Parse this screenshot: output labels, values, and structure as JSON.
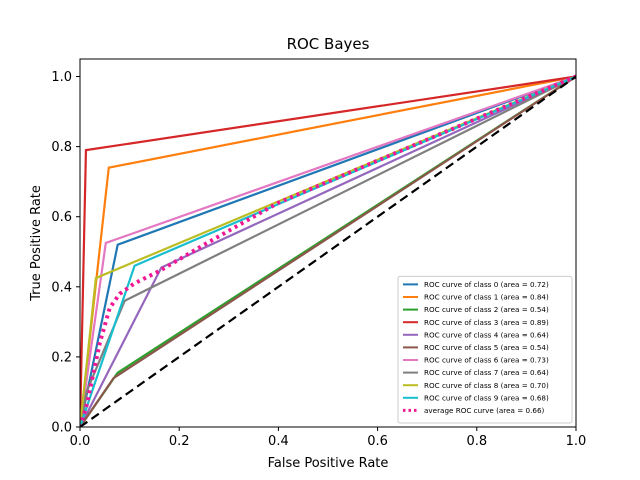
{
  "chart_data": {
    "type": "line",
    "title": "ROC Bayes",
    "xlabel": "False Positive Rate",
    "ylabel": "True Positive Rate",
    "xlim": [
      0.0,
      1.0
    ],
    "ylim": [
      0.0,
      1.05
    ],
    "x_ticks": [
      "0.0",
      "0.2",
      "0.4",
      "0.6",
      "0.8",
      "1.0"
    ],
    "y_ticks": [
      "0.0",
      "0.2",
      "0.4",
      "0.6",
      "0.8",
      "1.0"
    ],
    "x_tick_values": [
      0.0,
      0.2,
      0.4,
      0.6,
      0.8,
      1.0
    ],
    "y_tick_values": [
      0.0,
      0.2,
      0.4,
      0.6,
      0.8,
      1.0
    ],
    "grid": false,
    "legend_position": "lower right",
    "series": [
      {
        "name": "ROC curve of class 0 (area = 0.72)",
        "color": "#1f77b4",
        "style": "solid",
        "points": [
          [
            0,
            0
          ],
          [
            0.076,
            0.52
          ],
          [
            1,
            1
          ]
        ]
      },
      {
        "name": "ROC curve of class 1 (area = 0.84)",
        "color": "#ff7f0e",
        "style": "solid",
        "points": [
          [
            0,
            0
          ],
          [
            0.058,
            0.74
          ],
          [
            1,
            1
          ]
        ]
      },
      {
        "name": "ROC curve of class 2 (area = 0.54)",
        "color": "#2ca02c",
        "style": "solid",
        "points": [
          [
            0,
            0
          ],
          [
            0.076,
            0.155
          ],
          [
            1,
            1
          ]
        ]
      },
      {
        "name": "ROC curve of class 3 (area = 0.89)",
        "color": "#d62728",
        "style": "solid",
        "points": [
          [
            0,
            0
          ],
          [
            0.012,
            0.79
          ],
          [
            1,
            1
          ]
        ]
      },
      {
        "name": "ROC curve of class 4 (area = 0.64)",
        "color": "#9467bd",
        "style": "solid",
        "points": [
          [
            0,
            0
          ],
          [
            0.164,
            0.455
          ],
          [
            1,
            1
          ]
        ]
      },
      {
        "name": "ROC curve of class 5 (area = 0.54)",
        "color": "#8c564b",
        "style": "solid",
        "points": [
          [
            0,
            0
          ],
          [
            0.068,
            0.14
          ],
          [
            1,
            1
          ]
        ]
      },
      {
        "name": "ROC curve of class 6 (area = 0.73)",
        "color": "#e377c2",
        "style": "solid",
        "points": [
          [
            0,
            0
          ],
          [
            0.052,
            0.525
          ],
          [
            1,
            1
          ]
        ]
      },
      {
        "name": "ROC curve of class 7 (area = 0.64)",
        "color": "#7f7f7f",
        "style": "solid",
        "points": [
          [
            0,
            0
          ],
          [
            0.013,
            0.1
          ],
          [
            0.09,
            0.36
          ],
          [
            1,
            1
          ]
        ]
      },
      {
        "name": "ROC curve of class 8 (area = 0.70)",
        "color": "#bcbd22",
        "style": "solid",
        "points": [
          [
            0,
            0
          ],
          [
            0.032,
            0.425
          ],
          [
            1,
            1
          ]
        ]
      },
      {
        "name": "ROC curve of class 9 (area = 0.68)",
        "color": "#17becf",
        "style": "solid",
        "points": [
          [
            0,
            0
          ],
          [
            0.11,
            0.46
          ],
          [
            1,
            1
          ]
        ]
      },
      {
        "name": "average ROC curve (area = 0.66)",
        "color": "#f01894",
        "style": "dotted",
        "points": [
          [
            0,
            0
          ],
          [
            0.013,
            0.06
          ],
          [
            0.025,
            0.14
          ],
          [
            0.04,
            0.24
          ],
          [
            0.06,
            0.34
          ],
          [
            0.08,
            0.38
          ],
          [
            0.11,
            0.41
          ],
          [
            0.16,
            0.445
          ],
          [
            0.25,
            0.52
          ],
          [
            0.4,
            0.64
          ],
          [
            0.6,
            0.76
          ],
          [
            0.8,
            0.88
          ],
          [
            1,
            1
          ]
        ]
      }
    ],
    "reference_line": {
      "color": "#000000",
      "style": "dashed",
      "points": [
        [
          0,
          0
        ],
        [
          1,
          1
        ]
      ]
    }
  }
}
